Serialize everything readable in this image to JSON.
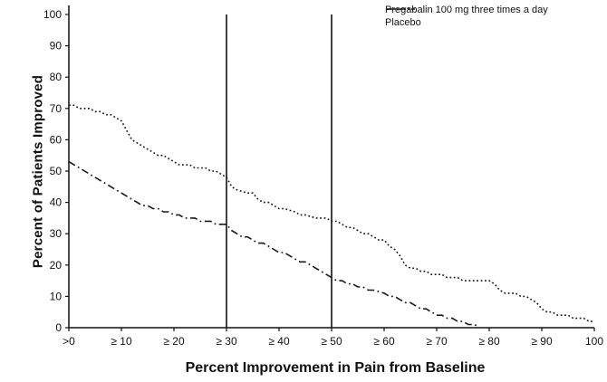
{
  "chart_data": {
    "type": "line",
    "title": "",
    "xlabel": "Percent Improvement in Pain from Baseline",
    "ylabel": "Percent of Patients Improved",
    "xlim": [
      0,
      100
    ],
    "ylim": [
      0,
      100
    ],
    "grid": false,
    "legend_position": "top-right",
    "x_tick_positions": [
      0,
      10,
      20,
      30,
      40,
      50,
      60,
      70,
      80,
      90,
      100
    ],
    "x_tick_labels": [
      ">0",
      "≥ 10",
      "≥ 20",
      "≥ 30",
      "≥ 40",
      "≥ 50",
      "≥ 60",
      "≥ 70",
      "≥ 80",
      "≥ 90",
      "100"
    ],
    "y_tick_positions": [
      0,
      10,
      20,
      30,
      40,
      50,
      60,
      70,
      80,
      90,
      100
    ],
    "y_tick_labels": [
      "0",
      "10",
      "20",
      "30",
      "40",
      "50",
      "60",
      "70",
      "80",
      "90",
      "100"
    ],
    "reference_lines_x": [
      30,
      50
    ],
    "legend": [
      {
        "label": "Pregabalin 100 mg three times a day",
        "style": "dotted"
      },
      {
        "label": "Placebo",
        "style": "dash-dot"
      }
    ],
    "series": [
      {
        "name": "Pregabalin 100 mg three times a day",
        "style": "dotted",
        "color": "#1a1a1a",
        "points": [
          [
            0,
            71
          ],
          [
            1,
            71
          ],
          [
            2,
            70
          ],
          [
            4,
            70
          ],
          [
            5,
            69
          ],
          [
            6,
            69
          ],
          [
            7,
            68
          ],
          [
            8,
            68
          ],
          [
            9,
            67
          ],
          [
            10,
            66
          ],
          [
            11,
            63
          ],
          [
            12,
            60
          ],
          [
            13,
            59
          ],
          [
            14,
            58
          ],
          [
            15,
            57
          ],
          [
            16,
            56
          ],
          [
            17,
            55
          ],
          [
            18,
            55
          ],
          [
            19,
            54
          ],
          [
            20,
            53
          ],
          [
            21,
            52
          ],
          [
            23,
            52
          ],
          [
            24,
            51
          ],
          [
            26,
            51
          ],
          [
            27,
            50
          ],
          [
            28,
            50
          ],
          [
            29,
            49
          ],
          [
            30,
            48
          ],
          [
            31,
            45
          ],
          [
            32,
            44
          ],
          [
            34,
            43
          ],
          [
            35,
            43
          ],
          [
            36,
            41
          ],
          [
            37,
            40
          ],
          [
            38,
            40
          ],
          [
            39,
            39
          ],
          [
            40,
            38
          ],
          [
            41,
            38
          ],
          [
            43,
            37
          ],
          [
            44,
            36
          ],
          [
            45,
            36
          ],
          [
            47,
            35
          ],
          [
            49,
            35
          ],
          [
            50,
            34
          ],
          [
            51,
            34
          ],
          [
            52,
            33
          ],
          [
            53,
            32
          ],
          [
            54,
            32
          ],
          [
            55,
            31
          ],
          [
            56,
            30
          ],
          [
            57,
            30
          ],
          [
            58,
            29
          ],
          [
            59,
            28
          ],
          [
            60,
            28
          ],
          [
            61,
            26
          ],
          [
            62,
            25
          ],
          [
            63,
            23
          ],
          [
            64,
            20
          ],
          [
            65,
            19
          ],
          [
            66,
            19
          ],
          [
            67,
            18
          ],
          [
            68,
            18
          ],
          [
            69,
            17
          ],
          [
            71,
            17
          ],
          [
            72,
            16
          ],
          [
            74,
            16
          ],
          [
            75,
            15
          ],
          [
            78,
            15
          ],
          [
            80,
            15
          ],
          [
            81,
            14
          ],
          [
            82,
            12
          ],
          [
            83,
            11
          ],
          [
            85,
            11
          ],
          [
            86,
            10
          ],
          [
            87,
            10
          ],
          [
            88,
            9
          ],
          [
            89,
            8
          ],
          [
            90,
            6
          ],
          [
            91,
            5
          ],
          [
            92,
            5
          ],
          [
            93,
            4
          ],
          [
            95,
            4
          ],
          [
            96,
            3
          ],
          [
            98,
            3
          ],
          [
            99,
            2
          ],
          [
            100,
            2
          ]
        ]
      },
      {
        "name": "Placebo",
        "style": "dash-dot",
        "color": "#1a1a1a",
        "points": [
          [
            0,
            53
          ],
          [
            1,
            52
          ],
          [
            2,
            51
          ],
          [
            3,
            50
          ],
          [
            4,
            49
          ],
          [
            5,
            48
          ],
          [
            6,
            47
          ],
          [
            7,
            46
          ],
          [
            8,
            45
          ],
          [
            9,
            44
          ],
          [
            10,
            43
          ],
          [
            11,
            42
          ],
          [
            12,
            41
          ],
          [
            13,
            40
          ],
          [
            14,
            39
          ],
          [
            15,
            39
          ],
          [
            16,
            38
          ],
          [
            17,
            38
          ],
          [
            18,
            37
          ],
          [
            19,
            37
          ],
          [
            20,
            36
          ],
          [
            21,
            36
          ],
          [
            22,
            35
          ],
          [
            24,
            35
          ],
          [
            25,
            34
          ],
          [
            27,
            34
          ],
          [
            28,
            33
          ],
          [
            30,
            33
          ],
          [
            31,
            31
          ],
          [
            32,
            30
          ],
          [
            33,
            29
          ],
          [
            34,
            29
          ],
          [
            35,
            28
          ],
          [
            36,
            27
          ],
          [
            37,
            27
          ],
          [
            38,
            26
          ],
          [
            39,
            25
          ],
          [
            40,
            24
          ],
          [
            41,
            24
          ],
          [
            42,
            23
          ],
          [
            43,
            22
          ],
          [
            44,
            21
          ],
          [
            45,
            21
          ],
          [
            46,
            20
          ],
          [
            47,
            19
          ],
          [
            48,
            18
          ],
          [
            49,
            17
          ],
          [
            50,
            16
          ],
          [
            51,
            15
          ],
          [
            52,
            15
          ],
          [
            53,
            14
          ],
          [
            54,
            14
          ],
          [
            55,
            13
          ],
          [
            56,
            13
          ],
          [
            57,
            12
          ],
          [
            58,
            12
          ],
          [
            60,
            11
          ],
          [
            61,
            10
          ],
          [
            62,
            10
          ],
          [
            63,
            9
          ],
          [
            64,
            8
          ],
          [
            65,
            8
          ],
          [
            66,
            7
          ],
          [
            67,
            6
          ],
          [
            68,
            6
          ],
          [
            69,
            5
          ],
          [
            70,
            4
          ],
          [
            71,
            4
          ],
          [
            72,
            3
          ],
          [
            73,
            3
          ],
          [
            74,
            2
          ],
          [
            75,
            2
          ],
          [
            76,
            1
          ],
          [
            77,
            1
          ],
          [
            78,
            0.5
          ]
        ]
      }
    ]
  }
}
